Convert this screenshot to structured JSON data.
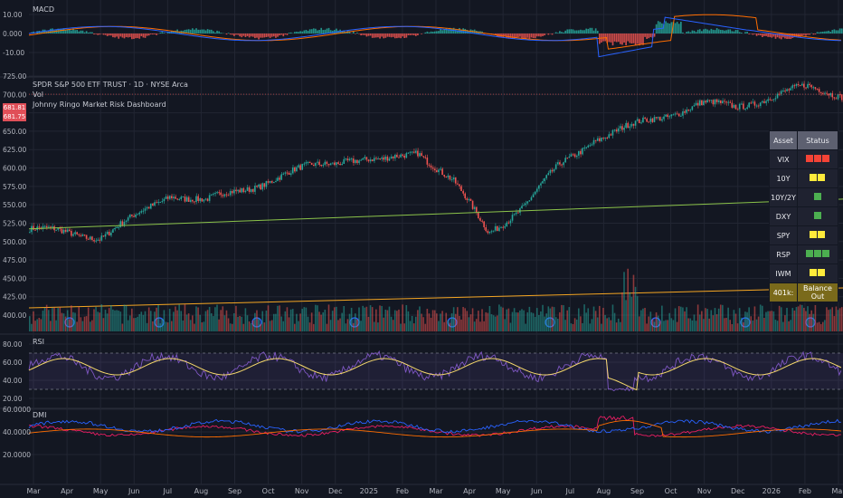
{
  "colors": {
    "bg": "#131722",
    "up": "#26a69a",
    "down": "#ef5350",
    "grid": "#222633",
    "text": "#b2b5be",
    "macd_line": "#2962ff",
    "signal_line": "#ff6d00",
    "rsi_line": "#7e57c2",
    "rsi_ma": "#f5d86b",
    "dmi_plus": "#2962ff",
    "dmi_minus": "#e91e63",
    "adx": "#ff6d00",
    "trend_green": "#8bc34a",
    "trend_orange": "#f5a623",
    "chip_red": "#f44336",
    "chip_yellow": "#ffeb3b",
    "chip_green": "#4caf50"
  },
  "panels": {
    "macd": {
      "label": "MACD",
      "ticks": [
        "10.00",
        "0.000",
        "-10.00"
      ]
    },
    "price": {
      "title": "SPDR S&P 500 ETF TRUST · 1D · NYSE Arca",
      "vol_label": "Vol",
      "indicator_label": "Johnny Ringo Market Risk Dashboard",
      "ticks": [
        "725.00",
        "700.00",
        "675.00",
        "650.00",
        "625.00",
        "600.00",
        "575.00",
        "550.00",
        "525.00",
        "500.00",
        "475.00",
        "450.00",
        "425.00",
        "400.00"
      ],
      "price_tag_1": "681.81",
      "price_tag_2": "681.75"
    },
    "rsi": {
      "label": "RSI",
      "ticks": [
        "80.00",
        "60.00",
        "40.00",
        "20.00"
      ]
    },
    "dmi": {
      "label": "DMI",
      "ticks": [
        "60.0000",
        "40.0000",
        "20.0000"
      ]
    }
  },
  "x_axis": [
    "Mar",
    "Apr",
    "May",
    "Jun",
    "Jul",
    "Aug",
    "Sep",
    "Oct",
    "Nov",
    "Dec",
    "2025",
    "Feb",
    "Mar",
    "Apr",
    "May",
    "Jun",
    "Jul",
    "Aug",
    "Sep",
    "Oct",
    "Nov",
    "Dec",
    "2026",
    "Feb",
    "Mar"
  ],
  "dashboard": {
    "header": {
      "asset": "Asset",
      "status": "Status"
    },
    "rows": [
      {
        "asset": "VIX",
        "chips": [
          "red",
          "red",
          "red"
        ]
      },
      {
        "asset": "10Y",
        "chips": [
          "yellow",
          "yellow"
        ]
      },
      {
        "asset": "10Y/2Y",
        "chips": [
          "green"
        ]
      },
      {
        "asset": "DXY",
        "chips": [
          "green"
        ]
      },
      {
        "asset": "SPY",
        "chips": [
          "yellow",
          "yellow"
        ]
      },
      {
        "asset": "RSP",
        "chips": [
          "green",
          "green",
          "green"
        ]
      },
      {
        "asset": "IWM",
        "chips": [
          "yellow",
          "yellow"
        ]
      }
    ],
    "footer": {
      "label": "401k:",
      "value": "Balance Out"
    }
  },
  "chart_data": {
    "type": "line",
    "title": "SPDR S&P 500 ETF TRUST · 1D · NYSE Arca",
    "x": [
      "2024-03",
      "2024-04",
      "2024-05",
      "2024-06",
      "2024-07",
      "2024-08",
      "2024-09",
      "2024-10",
      "2024-11",
      "2024-12",
      "2025-01",
      "2025-02",
      "2025-03",
      "2025-04",
      "2025-05",
      "2025-06",
      "2025-07",
      "2025-08",
      "2025-09",
      "2025-10",
      "2025-11",
      "2025-12",
      "2026-01",
      "2026-02"
    ],
    "series": [
      {
        "values": [
          510,
          505,
          500,
          525,
          555,
          545,
          560,
          575,
          590,
          600,
          595,
          610,
          570,
          505,
          540,
          590,
          625,
          640,
          655,
          670,
          665,
          680,
          690,
          682
        ]
      }
    ],
    "ylim": [
      390,
      730
    ],
    "last_price": 681.81,
    "volume_ylim": [
      0,
      1
    ],
    "rsi_ylim": [
      20,
      85
    ],
    "dmi_ylim": [
      0,
      65
    ],
    "macd_ylim": [
      -15,
      15
    ]
  }
}
